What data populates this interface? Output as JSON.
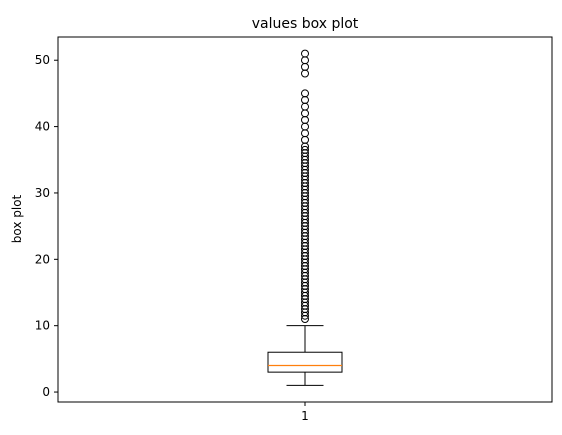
{
  "chart_data": {
    "type": "box",
    "title": "values box plot",
    "xlabel": "",
    "ylabel": "box plot",
    "categories": [
      "1"
    ],
    "ylim": [
      -1.5,
      53.5
    ],
    "yticks": [
      0,
      10,
      20,
      30,
      40,
      50
    ],
    "grid": false,
    "colors": {
      "box": "#000000",
      "median": "#ff7f0e",
      "flier": "#000000"
    },
    "series": [
      {
        "whisker_low": 1,
        "q1": 3,
        "median": 4,
        "q3": 6,
        "whisker_high": 10,
        "outliers": [
          11,
          11.5,
          12,
          12.5,
          13,
          13.5,
          14,
          14.5,
          15,
          15.5,
          16,
          16.5,
          17,
          17.5,
          18,
          18.5,
          19,
          19.5,
          20,
          20.5,
          21,
          21.5,
          22,
          22.5,
          23,
          23.5,
          24,
          24.5,
          25,
          25.5,
          26,
          26.5,
          27,
          27.5,
          28,
          28.5,
          29,
          29.5,
          30,
          30.5,
          31,
          31.5,
          32,
          32.5,
          33,
          33.5,
          34,
          34.5,
          35,
          35.5,
          36,
          36.5,
          37,
          38,
          39,
          40,
          41,
          42,
          43,
          44,
          45,
          48,
          49,
          50,
          51
        ]
      }
    ]
  }
}
